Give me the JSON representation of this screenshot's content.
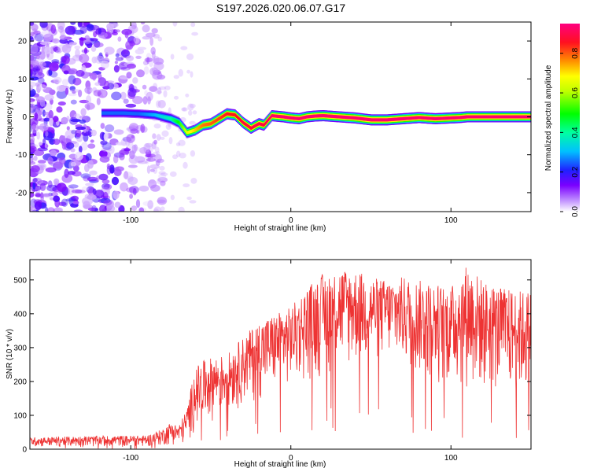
{
  "figure_title": "S197.2026.020.06.07.G17",
  "chart_data": [
    {
      "type": "heatmap",
      "title": "S197.2026.020.06.07.G17",
      "xlabel": "Height of straight line (km)",
      "ylabel": "Frequency (Hz)",
      "xlim": [
        -163,
        150
      ],
      "ylim": [
        -25,
        25
      ],
      "xticks": [
        -100,
        0,
        100
      ],
      "xtick_labels": [
        "-100",
        "0",
        "100"
      ],
      "yticks": [
        -20,
        -10,
        0,
        10,
        20
      ],
      "ytick_labels": [
        "-20",
        "-10",
        "0",
        "10",
        "20"
      ],
      "colorbar": {
        "label": "Normalized spectral amplitude",
        "range": [
          0.0,
          0.95
        ],
        "ticks": [
          0.0,
          0.2,
          0.4,
          0.6,
          0.8
        ],
        "tick_labels": [
          "0.0",
          "0.2",
          "0.4",
          "0.6",
          "0.8"
        ],
        "colormap": [
          "#ffffff",
          "#7a00ff",
          "#2020ff",
          "#00c0ff",
          "#00ff80",
          "#00ff00",
          "#ffff00",
          "#ff8000",
          "#ff0040",
          "#ff0080"
        ]
      },
      "ridge": {
        "x": [
          -118,
          -105,
          -95,
          -85,
          -75,
          -70,
          -65,
          -60,
          -55,
          -50,
          -45,
          -40,
          -35,
          -30,
          -25,
          -20,
          -17,
          -15,
          -12,
          -10,
          -5,
          0,
          5,
          10,
          15,
          20,
          30,
          40,
          50,
          60,
          70,
          80,
          90,
          100,
          105,
          110,
          120,
          130,
          140,
          150
        ],
        "freq_hz": [
          1.0,
          1.0,
          0.8,
          0.5,
          -0.5,
          -1.5,
          -4.2,
          -3.5,
          -2.2,
          -1.8,
          -0.5,
          0.8,
          0.5,
          -1.5,
          -3.0,
          -1.8,
          -2.2,
          -1.2,
          0.3,
          0.2,
          0.0,
          -0.3,
          -0.5,
          0.0,
          0.2,
          0.3,
          0.0,
          -0.3,
          -0.8,
          -0.8,
          -0.5,
          -0.2,
          -0.5,
          -0.3,
          -0.2,
          0.0,
          0.0,
          0.0,
          0.0,
          0.0
        ],
        "amplitude": [
          0.25,
          0.25,
          0.25,
          0.3,
          0.4,
          0.5,
          0.65,
          0.72,
          0.78,
          0.8,
          0.82,
          0.85,
          0.85,
          0.88,
          0.88,
          0.9,
          0.88,
          0.9,
          0.92,
          0.92,
          0.93,
          0.93,
          0.93,
          0.93,
          0.93,
          0.93,
          0.93,
          0.93,
          0.93,
          0.93,
          0.93,
          0.93,
          0.93,
          0.93,
          0.93,
          0.93,
          0.93,
          0.93,
          0.93,
          0.93
        ]
      },
      "noise_region_x": [
        -163,
        -80
      ],
      "noise_amplitude_range": [
        0.02,
        0.2
      ]
    },
    {
      "type": "line",
      "xlabel": "Height of straight line (km)",
      "ylabel": "SNR (10 * v/v)",
      "xlim": [
        -163,
        150
      ],
      "ylim": [
        0,
        560
      ],
      "xticks": [
        -100,
        0,
        100
      ],
      "xtick_labels": [
        "-100",
        "0",
        "100"
      ],
      "yticks": [
        0,
        100,
        200,
        300,
        400,
        500
      ],
      "ytick_labels": [
        "0",
        "100",
        "200",
        "300",
        "400",
        "500"
      ],
      "series": [
        {
          "name": "SNR",
          "color": "#ee3333",
          "envelope_x": [
            -163,
            -110,
            -90,
            -80,
            -75,
            -70,
            -65,
            -60,
            -55,
            -50,
            -40,
            -30,
            -20,
            -10,
            0,
            10,
            20,
            30,
            40,
            50,
            60,
            70,
            80,
            90,
            100,
            110,
            120,
            130,
            140,
            150
          ],
          "envelope_min": [
            5,
            5,
            5,
            8,
            10,
            10,
            8,
            50,
            60,
            80,
            100,
            120,
            140,
            160,
            180,
            190,
            200,
            220,
            230,
            240,
            250,
            230,
            200,
            180,
            170,
            160,
            150,
            150,
            140,
            140
          ],
          "envelope_max": [
            35,
            40,
            40,
            60,
            80,
            70,
            120,
            240,
            260,
            270,
            280,
            330,
            380,
            400,
            420,
            480,
            520,
            540,
            530,
            510,
            500,
            510,
            500,
            490,
            480,
            550,
            500,
            480,
            470,
            470
          ]
        }
      ]
    }
  ]
}
